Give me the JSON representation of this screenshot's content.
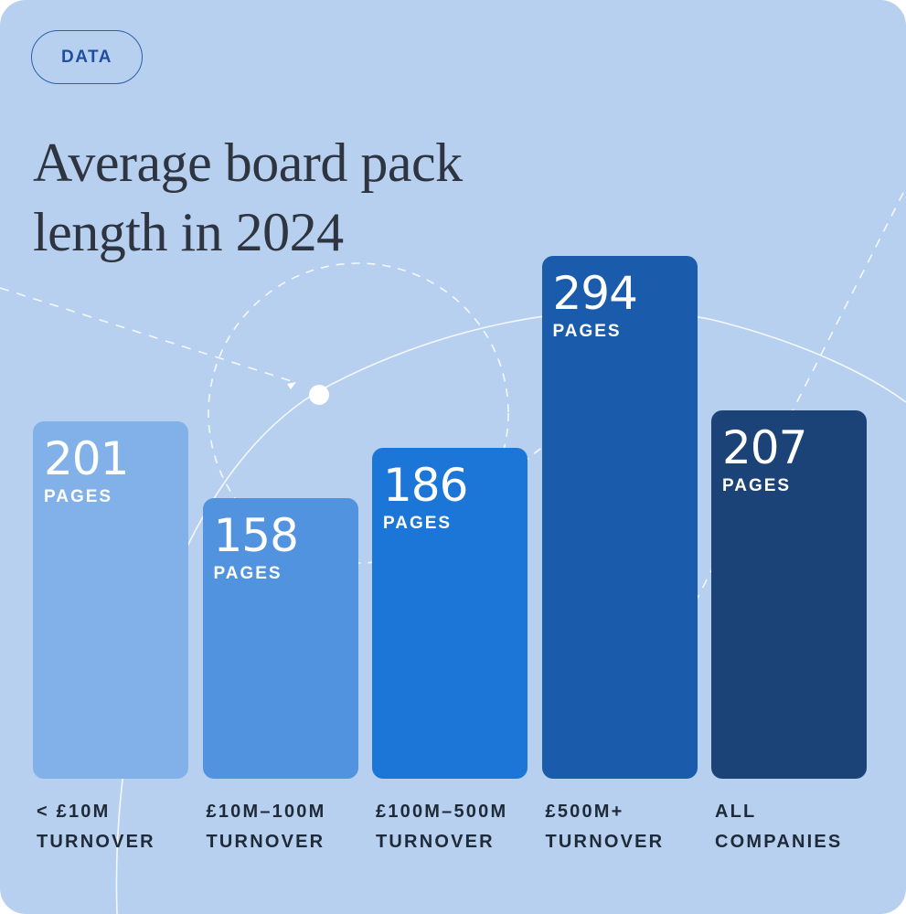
{
  "badge": "DATA",
  "title_lines": [
    "Average board pack",
    "length in 2024"
  ],
  "chart_data": {
    "type": "bar",
    "title": "Average board pack length in 2024",
    "unit_label": "PAGES",
    "ylim": [
      0,
      320
    ],
    "categories": [
      [
        "< £10M",
        "TURNOVER"
      ],
      [
        "£10M–100M",
        "TURNOVER"
      ],
      [
        "£100M–500M",
        "TURNOVER"
      ],
      [
        "£500M+",
        "TURNOVER"
      ],
      [
        "ALL",
        "COMPANIES"
      ]
    ],
    "values": [
      201,
      158,
      186,
      294,
      207
    ],
    "value_labels": [
      "201",
      "158",
      "186",
      "294",
      "207"
    ],
    "colors": [
      "#82b1e9",
      "#5193df",
      "#1b76d8",
      "#1a5bab",
      "#1b4378"
    ]
  }
}
